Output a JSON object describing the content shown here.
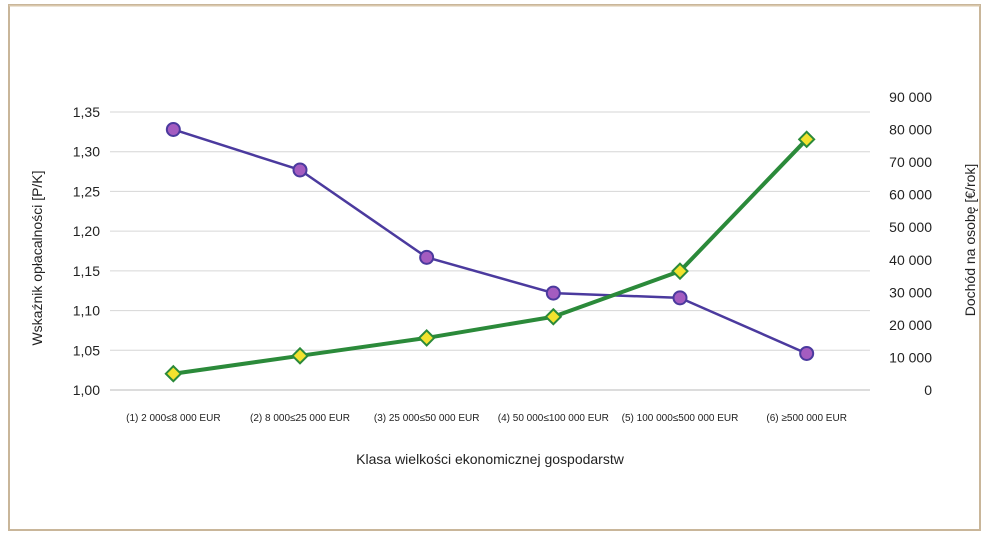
{
  "chart_data": {
    "type": "line",
    "title": "",
    "categories": [
      "(1) 2 000≤8 000 EUR",
      "(2) 8 000≤25 000 EUR",
      "(3) 25 000≤50 000 EUR",
      "(4) 50 000≤100 000 EUR",
      "(5) 100 000≤500 000 EUR",
      "(6) ≥500 000 EUR"
    ],
    "xlabel": "Klasa wielkości ekonomicznej gospodarstw",
    "ylabel_left": "Wskaźnik opłacalności [P/K]",
    "ylabel_right": "Dochód na osobę [€/rok]",
    "ylim_left": [
      1.0,
      1.35
    ],
    "ylim_right": [
      0,
      90000
    ],
    "yticks_left": [
      "1,00",
      "1,05",
      "1,10",
      "1,15",
      "1,20",
      "1,25",
      "1,30",
      "1,35"
    ],
    "yticks_right": [
      "0",
      "10 000",
      "20 000",
      "30 000",
      "40 000",
      "50 000",
      "60 000",
      "70 000",
      "80 000",
      "90 000"
    ],
    "grid": true,
    "series": [
      {
        "axis": "left",
        "color": "#4b3a9e",
        "marker_color": "#a45cc0",
        "values": [
          1.328,
          1.277,
          1.167,
          1.122,
          1.116,
          1.046
        ]
      },
      {
        "axis": "right",
        "color": "#2b8a3a",
        "marker_color": "#f2e22e",
        "values": [
          5000,
          10500,
          16000,
          22500,
          36500,
          77000
        ]
      }
    ]
  }
}
